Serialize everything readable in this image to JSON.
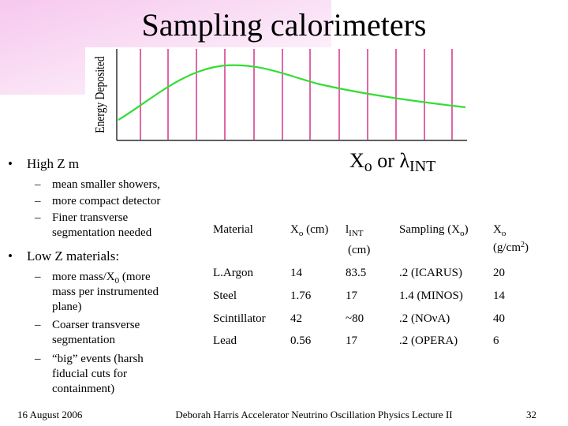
{
  "title": "Sampling calorimeters",
  "figure": {
    "y_label": "Energy Deposited",
    "x_label": {
      "base": "X",
      "sub": "o",
      "mid": " or λ",
      "sub2": "INT"
    }
  },
  "bullets": [
    {
      "text": "High Z m",
      "items": [
        "mean smaller showers,",
        "more compact detector",
        {
          "line1": "Finer transverse",
          "line2": "segmentation needed"
        }
      ]
    },
    {
      "text": "Low Z materials:",
      "items": [
        {
          "pre": "more mass/X",
          "sub": "0",
          "post": " (more",
          "line2": "mass per instrumented",
          "line3": "plane)"
        },
        {
          "line1": "Coarser transverse",
          "line2": "segmentation"
        },
        {
          "line1": "“big” events (harsh",
          "line2": "fiducial cuts for",
          "line3": "containment)"
        }
      ]
    }
  ],
  "table": {
    "header": [
      {
        "text": "Material"
      },
      {
        "base": "X",
        "sub": "o",
        "rest": " (cm)"
      },
      {
        "base": "l",
        "sub": "INT",
        "line2": "(cm)"
      },
      {
        "base": "Sampling (X",
        "sub": "o",
        "rest": ")"
      },
      {
        "base": "X",
        "sub": "o",
        "line2a": "(g/cm",
        "sup": "2",
        "line2b": ")"
      }
    ],
    "rows": [
      [
        "L.Argon",
        "14",
        "83.5",
        ".2 (ICARUS)",
        "20"
      ],
      [
        "Steel",
        "1.76",
        "17",
        "1.4 (MINOS)",
        "14"
      ],
      [
        "Scintillator",
        "42",
        "~80",
        ".2 (NOνA)",
        "40"
      ],
      [
        "Lead",
        "0.56",
        "17",
        ".2 (OPERA)",
        "6"
      ]
    ]
  },
  "footer": {
    "date": "16 August 2006",
    "center": "Deborah Harris Accelerator Neutrino Oscillation Physics Lecture II",
    "page": "32"
  }
}
